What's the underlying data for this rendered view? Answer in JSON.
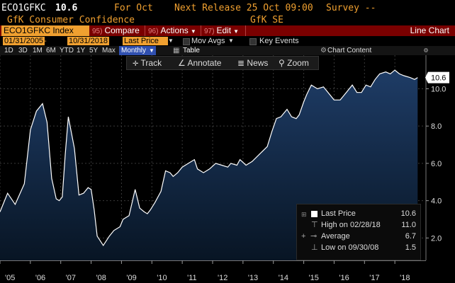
{
  "header": {
    "ticker": "ECO1GFKC",
    "last_value": "10.6",
    "for_label": "For Oct",
    "next_release": "Next Release 25 Oct 09:00",
    "survey": "Survey --",
    "series_name": "GfK Consumer Confidence",
    "source": "GfK SE"
  },
  "command_bar": {
    "ticker_index": "ECO1GFKC Index",
    "compare_num": "95)",
    "compare": "Compare",
    "actions_num": "96)",
    "actions": "Actions",
    "edit_num": "97)",
    "edit": "Edit",
    "view_title": "Line Chart"
  },
  "date_row": {
    "start_date": "01/31/2005",
    "end_date": "10/31/2018",
    "field": "Last Price",
    "mov_avgs": "Mov Avgs",
    "key_events": "Key Events"
  },
  "period_row": {
    "periods": [
      "1D",
      "3D",
      "1M",
      "6M",
      "YTD",
      "1Y",
      "5Y",
      "Max"
    ],
    "frequency": "Monthly",
    "table": "Table",
    "chart_content": "Chart Content"
  },
  "toolbar": {
    "track": "Track",
    "annotate": "Annotate",
    "news": "News",
    "zoom": "Zoom"
  },
  "legend": {
    "last_price_label": "Last Price",
    "last_price_value": "10.6",
    "high_label": "High on 02/28/18",
    "high_value": "11.0",
    "average_label": "Average",
    "average_value": "6.7",
    "low_label": "Low on 09/30/08",
    "low_value": "1.5"
  },
  "colors": {
    "accent_orange": "#f0a030",
    "command_red": "#7a0000",
    "area_fill_top": "#1e3c66",
    "area_fill_bottom": "#081524",
    "line": "#ffffff",
    "current_marker_bg": "#ffffff"
  },
  "chart_data": {
    "type": "area",
    "title": "",
    "xlabel": "",
    "ylabel": "",
    "ylim": [
      0.8,
      11.8
    ],
    "y_ticks": [
      "2.0",
      "4.0",
      "6.0",
      "8.0",
      "10.0"
    ],
    "x_tick_labels": [
      "'05",
      "'06",
      "'07",
      "'08",
      "'09",
      "'10",
      "'11",
      "'12",
      "'13",
      "'14",
      "'15",
      "'16",
      "'17",
      "'18"
    ],
    "x_tick_years": [
      2005,
      2006,
      2007,
      2008,
      2009,
      2010,
      2011,
      2012,
      2013,
      2014,
      2015,
      2016,
      2017,
      2018
    ],
    "current_value_label": "10.6",
    "series": [
      {
        "name": "Last Price",
        "x": [
          2005.0,
          2005.25,
          2005.5,
          2005.8,
          2006.0,
          2006.2,
          2006.4,
          2006.55,
          2006.7,
          2006.85,
          2006.95,
          2007.05,
          2007.15,
          2007.25,
          2007.45,
          2007.6,
          2007.75,
          2007.9,
          2008.0,
          2008.1,
          2008.2,
          2008.4,
          2008.6,
          2008.75,
          2008.95,
          2009.05,
          2009.25,
          2009.45,
          2009.6,
          2009.75,
          2009.85,
          2009.95,
          2010.1,
          2010.3,
          2010.45,
          2010.6,
          2010.7,
          2010.85,
          2011.0,
          2011.2,
          2011.4,
          2011.5,
          2011.7,
          2011.9,
          2012.1,
          2012.3,
          2012.5,
          2012.6,
          2012.8,
          2012.9,
          2013.1,
          2013.3,
          2013.55,
          2013.8,
          2013.95,
          2014.1,
          2014.25,
          2014.45,
          2014.6,
          2014.75,
          2014.85,
          2015.0,
          2015.1,
          2015.25,
          2015.45,
          2015.65,
          2015.8,
          2016.0,
          2016.2,
          2016.4,
          2016.6,
          2016.75,
          2016.9,
          2017.05,
          2017.2,
          2017.35,
          2017.5,
          2017.7,
          2017.85,
          2018.0,
          2018.15,
          2018.3,
          2018.5,
          2018.65,
          2018.75
        ],
        "values": [
          3.4,
          4.4,
          3.8,
          4.9,
          7.8,
          8.8,
          9.2,
          8.2,
          5.2,
          4.1,
          4.0,
          4.2,
          6.5,
          8.5,
          6.8,
          4.3,
          4.4,
          4.7,
          4.6,
          3.5,
          2.1,
          1.6,
          2.1,
          2.4,
          2.6,
          3.0,
          3.2,
          4.6,
          3.6,
          3.4,
          3.3,
          3.5,
          3.9,
          4.5,
          5.6,
          5.5,
          5.3,
          5.5,
          5.8,
          6.0,
          6.2,
          5.7,
          5.5,
          5.7,
          6.0,
          5.9,
          5.8,
          6.0,
          5.9,
          6.2,
          5.9,
          6.1,
          6.5,
          6.9,
          7.7,
          8.4,
          8.5,
          8.9,
          8.5,
          8.4,
          8.6,
          9.3,
          9.7,
          10.2,
          10.0,
          10.1,
          9.8,
          9.4,
          9.4,
          9.8,
          10.2,
          9.8,
          9.8,
          10.2,
          10.1,
          10.5,
          10.8,
          10.9,
          10.8,
          11.0,
          10.8,
          10.7,
          10.6,
          10.5,
          10.6
        ]
      }
    ]
  }
}
